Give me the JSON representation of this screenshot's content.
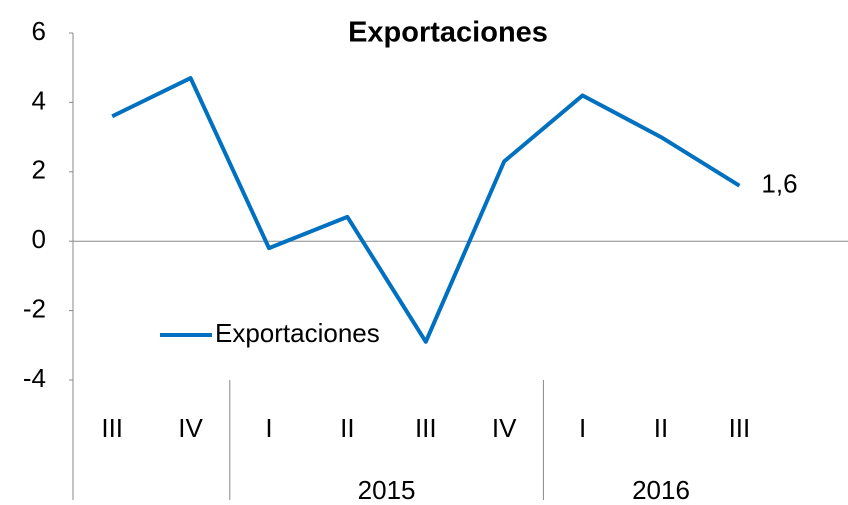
{
  "chart_data": {
    "type": "line",
    "title": "Exportaciones",
    "categories": [
      "III",
      "IV",
      "I",
      "II",
      "III",
      "IV",
      "I",
      "II",
      "III"
    ],
    "years": [
      null,
      null,
      "2015",
      "2015",
      "2015",
      "2015",
      "2016",
      "2016",
      "2016"
    ],
    "series": [
      {
        "name": "Exportaciones",
        "color": "#0070c0",
        "values": [
          3.6,
          4.7,
          -0.2,
          0.7,
          -2.9,
          2.3,
          4.2,
          3.0,
          1.6
        ],
        "value_labels": [
          null,
          null,
          null,
          null,
          null,
          null,
          null,
          null,
          "1,6"
        ]
      }
    ],
    "ylim": [
      -4,
      6
    ],
    "yticks": [
      -4,
      -2,
      0,
      2,
      4,
      6
    ],
    "legend": "lower left"
  }
}
